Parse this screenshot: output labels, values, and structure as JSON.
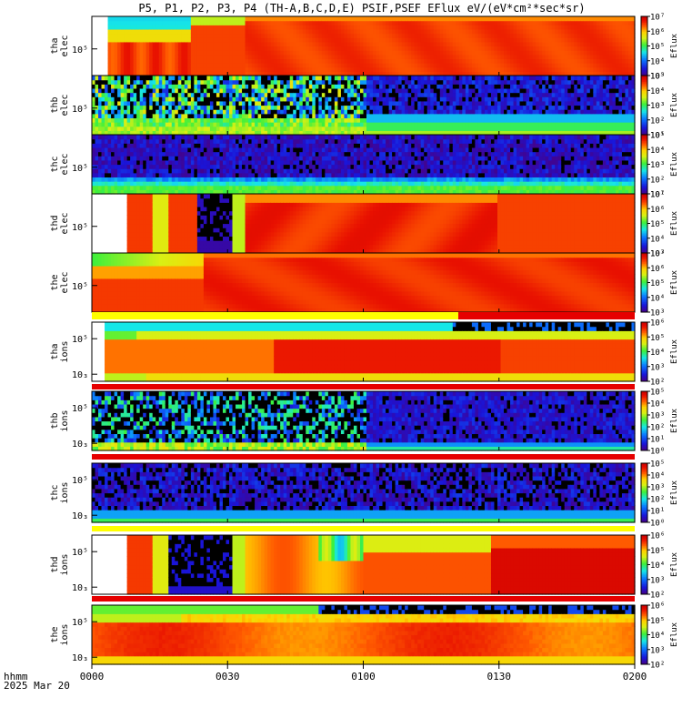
{
  "chart_data": {
    "type": "heatmap",
    "title": "P5, P1, P2, P3, P4 (TH-A,B,C,D,E) PSIF,PSEF EFlux eV/(eV*cm²*sec*sr)",
    "xaxis": {
      "label_line1": "hhmm",
      "label_line2": "2025 Mar 20",
      "range_minutes": [
        0,
        120
      ],
      "ticks": [
        {
          "minute": 0,
          "label": "0000"
        },
        {
          "minute": 30,
          "label": "0030"
        },
        {
          "minute": 60,
          "label": "0100"
        },
        {
          "minute": 90,
          "label": "0130"
        },
        {
          "minute": 120,
          "label": "0200"
        }
      ]
    },
    "colorbar_unit": "Eflux",
    "panels": [
      {
        "label1": "tha",
        "label2": "elec",
        "yticks": [
          "10⁵"
        ],
        "cbar_exp": [
          3,
          7
        ],
        "style": "elec_a",
        "flag": null
      },
      {
        "label1": "thb",
        "label2": "elec",
        "yticks": [
          "10⁵"
        ],
        "cbar_exp": [
          1,
          5
        ],
        "style": "elec_b",
        "flag": null
      },
      {
        "label1": "thc",
        "label2": "elec",
        "yticks": [
          "10⁵"
        ],
        "cbar_exp": [
          1,
          5
        ],
        "style": "elec_c",
        "flag": null
      },
      {
        "label1": "thd",
        "label2": "elec",
        "yticks": [
          "10⁵"
        ],
        "cbar_exp": [
          3,
          7
        ],
        "style": "elec_d",
        "flag": null
      },
      {
        "label1": "the",
        "label2": "elec",
        "yticks": [
          "10⁵"
        ],
        "cbar_exp": [
          3,
          7
        ],
        "style": "elec_e",
        "flag": {
          "yellow_until_min": 81
        }
      },
      {
        "label1": "tha",
        "label2": "ions",
        "yticks": [
          "10⁵",
          "10₃"
        ],
        "cbar_exp": [
          2,
          6
        ],
        "style": "ion_a",
        "flag": {
          "yellow_until_min": 0
        }
      },
      {
        "label1": "thb",
        "label2": "ions",
        "yticks": [
          "10⁵",
          "10₃"
        ],
        "cbar_exp": [
          0,
          5
        ],
        "style": "ion_b",
        "flag": {
          "yellow_until_min": 0
        }
      },
      {
        "label1": "thc",
        "label2": "ions",
        "yticks": [
          "10⁵",
          "10₃"
        ],
        "cbar_exp": [
          0,
          5
        ],
        "style": "ion_c",
        "flag": {
          "yellow_until_min": 120
        }
      },
      {
        "label1": "thd",
        "label2": "ions",
        "yticks": [
          "10⁵",
          "10₃"
        ],
        "cbar_exp": [
          2,
          6
        ],
        "style": "ion_d",
        "flag": {
          "yellow_until_min": 0
        }
      },
      {
        "label1": "the",
        "label2": "ions",
        "yticks": [
          "10⁵",
          "10₃"
        ],
        "cbar_exp": [
          2,
          6
        ],
        "style": "ion_e",
        "flag": null
      }
    ]
  }
}
